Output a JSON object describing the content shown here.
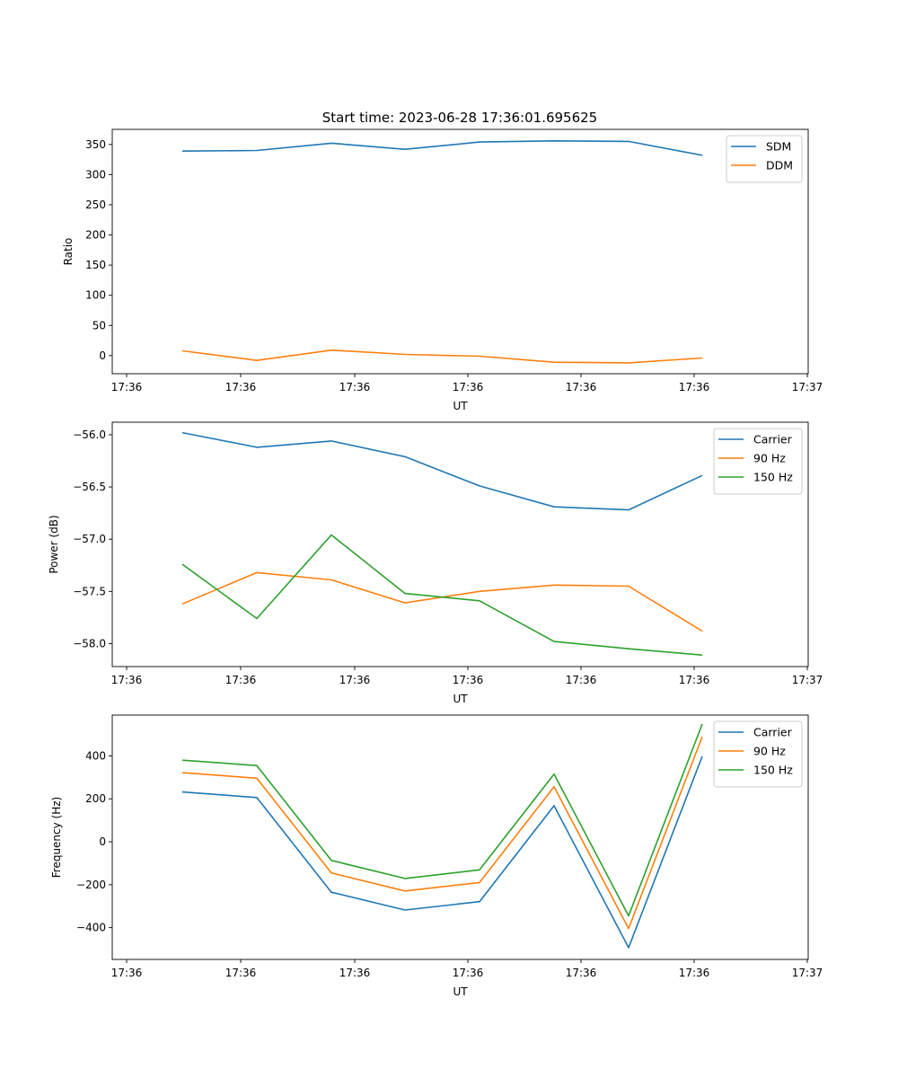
{
  "figure": {
    "title": "Start time: 2023-06-28 17:36:01.695625"
  },
  "chart_data": [
    {
      "type": "line",
      "title": "Start time: 2023-06-28 17:36:01.695625",
      "xlabel": "UT",
      "ylabel": "Ratio",
      "x_tick_labels": [
        "17:36",
        "17:36",
        "17:36",
        "17:36",
        "17:36",
        "17:36",
        "17:36"
      ],
      "x_tick_label_last": "17:37",
      "y_ticks": [
        0,
        50,
        100,
        150,
        200,
        250,
        300,
        350
      ],
      "ylim": [
        -30,
        375
      ],
      "legend_position": "top-right",
      "grid": false,
      "series": [
        {
          "name": "SDM",
          "color": "#1f77b4",
          "values": [
            339,
            340,
            352,
            342,
            354,
            356,
            355,
            332
          ]
        },
        {
          "name": "DDM",
          "color": "#ff7f0e",
          "values": [
            8,
            -8,
            9,
            2,
            -1,
            -11,
            -12,
            -4
          ]
        }
      ]
    },
    {
      "type": "line",
      "title": "",
      "xlabel": "UT",
      "ylabel": "Power (dB)",
      "x_tick_labels": [
        "17:36",
        "17:36",
        "17:36",
        "17:36",
        "17:36",
        "17:36",
        "17:36"
      ],
      "x_tick_label_last": "17:37",
      "y_ticks": [
        -56.0,
        -56.5,
        -57.0,
        -57.5,
        -58.0
      ],
      "ylim": [
        -58.22,
        -55.88
      ],
      "legend_position": "top-right",
      "grid": false,
      "series": [
        {
          "name": "Carrier",
          "color": "#1f77b4",
          "values": [
            -55.98,
            -56.12,
            -56.06,
            -56.21,
            -56.49,
            -56.69,
            -56.72,
            -56.39
          ]
        },
        {
          "name": "90 Hz",
          "color": "#ff7f0e",
          "values": [
            -57.62,
            -57.32,
            -57.39,
            -57.61,
            -57.5,
            -57.44,
            -57.45,
            -57.88
          ]
        },
        {
          "name": "150 Hz",
          "color": "#2ca02c",
          "values": [
            -57.24,
            -57.76,
            -56.96,
            -57.52,
            -57.59,
            -57.98,
            -58.05,
            -58.11
          ]
        }
      ]
    },
    {
      "type": "line",
      "title": "",
      "xlabel": "UT",
      "ylabel": "Frequency (Hz)",
      "x_tick_labels": [
        "17:36",
        "17:36",
        "17:36",
        "17:36",
        "17:36",
        "17:36",
        "17:36"
      ],
      "x_tick_label_last": "17:37",
      "y_ticks": [
        -400,
        -200,
        0,
        200,
        400
      ],
      "ylim": [
        -548,
        590
      ],
      "legend_position": "top-right",
      "grid": false,
      "series": [
        {
          "name": "Carrier",
          "color": "#1f77b4",
          "values": [
            232,
            206,
            -235,
            -318,
            -279,
            168,
            -493,
            398
          ]
        },
        {
          "name": "90 Hz",
          "color": "#ff7f0e",
          "values": [
            322,
            296,
            -145,
            -229,
            -190,
            256,
            -404,
            489
          ]
        },
        {
          "name": "150 Hz",
          "color": "#2ca02c",
          "values": [
            380,
            355,
            -87,
            -171,
            -131,
            315,
            -345,
            548
          ]
        }
      ]
    }
  ]
}
